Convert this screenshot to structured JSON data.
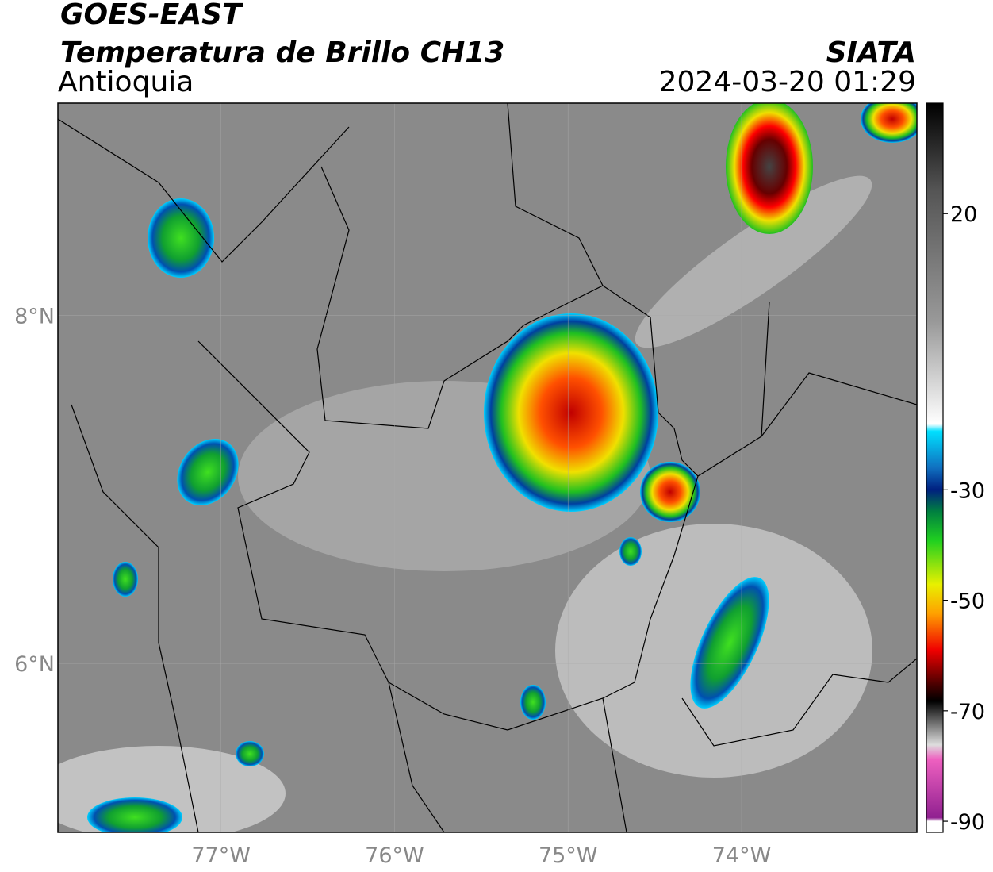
{
  "header": {
    "satellite": "GOES-EAST",
    "product": "Temperatura de Brillo CH13",
    "region": "Antioquia",
    "agency": "SIATA",
    "datetime": "2024-03-20 01:29"
  },
  "map": {
    "lon_range": [
      -77.94,
      -72.99
    ],
    "lat_range": [
      5.03,
      9.22
    ],
    "lon_ticks": [
      {
        "value": -77,
        "label": "77°W"
      },
      {
        "value": -76,
        "label": "76°W"
      },
      {
        "value": -75,
        "label": "75°W"
      },
      {
        "value": -74,
        "label": "74°W"
      }
    ],
    "lat_ticks": [
      {
        "value": 8,
        "label": "8°N"
      },
      {
        "value": 6,
        "label": "6°N"
      }
    ]
  },
  "colorbar": {
    "range": [
      -92,
      40
    ],
    "ticks": [
      20,
      -30,
      -50,
      -70,
      -90
    ]
  }
}
